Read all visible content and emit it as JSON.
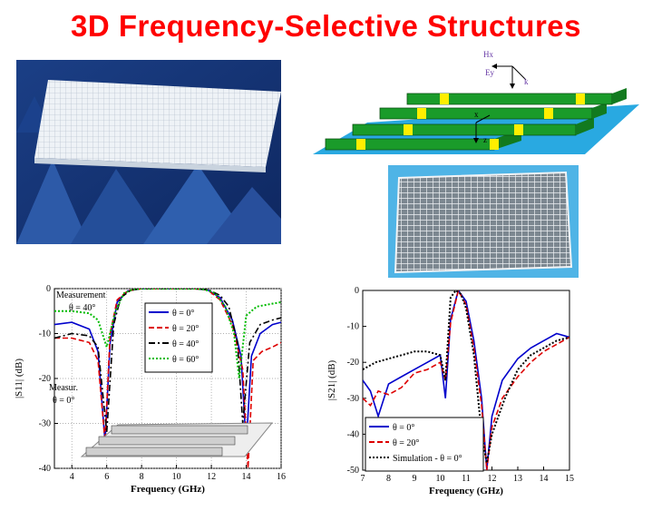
{
  "title": "3D Frequency-Selective Structures",
  "diagram": {
    "labels": {
      "h": "Hx",
      "e": "Ey",
      "k": "k",
      "x": "x",
      "z": "z"
    }
  },
  "chart_data": [
    {
      "type": "line",
      "xlabel": "Frequency (GHz)",
      "ylabel": "|S11| (dB)",
      "xlim": [
        3,
        16
      ],
      "ylim": [
        -40,
        0
      ],
      "xticks": [
        "4",
        "6",
        "8",
        "10",
        "12",
        "14",
        "16"
      ],
      "yticks": [
        "0",
        "-10",
        "-20",
        "-30",
        "-40"
      ],
      "grid": true,
      "legend_position": "top-center",
      "annotations": [
        "Measurement",
        "θ = 40°",
        "Measur.",
        "θ = 0°"
      ],
      "series": [
        {
          "name": "θ = 0°",
          "color": "#0000cc",
          "dash": "solid",
          "x": [
            3,
            4,
            5,
            5.5,
            5.9,
            6.2,
            6.6,
            7.2,
            8,
            9,
            10,
            11,
            11.8,
            12.5,
            13.2,
            13.7,
            14,
            14.3,
            14.8,
            15.5,
            16
          ],
          "y": [
            -8,
            -7.5,
            -9,
            -14,
            -34,
            -12,
            -3,
            -0.5,
            0,
            0,
            0,
            0,
            -0.3,
            -2,
            -7,
            -15,
            -35,
            -15,
            -10,
            -8,
            -7.5
          ]
        },
        {
          "name": "θ = 20°",
          "color": "#dd0000",
          "dash": "dashed",
          "x": [
            3,
            4,
            5,
            5.5,
            5.9,
            6.2,
            6.6,
            7.2,
            8,
            9,
            10,
            11,
            11.8,
            12.5,
            13.2,
            13.8,
            14.1,
            14.4,
            14.9,
            15.5,
            16
          ],
          "y": [
            -11,
            -11,
            -12,
            -16,
            -34,
            -10,
            -2.5,
            -0.5,
            0,
            0,
            0,
            0,
            -0.3,
            -2.5,
            -8,
            -18,
            -40,
            -16,
            -14,
            -13,
            -12
          ]
        },
        {
          "name": "θ = 40°",
          "color": "#000000",
          "dash": "dashdot",
          "x": [
            3,
            4,
            5,
            5.5,
            6,
            6.4,
            6.8,
            7.4,
            8,
            9,
            10,
            11,
            11.8,
            12.5,
            13,
            13.5,
            13.8,
            14.2,
            14.8,
            15.5,
            16
          ],
          "y": [
            -11,
            -10,
            -10.5,
            -13,
            -32,
            -8,
            -2,
            -0.3,
            0,
            0,
            0,
            0,
            -0.2,
            -1.5,
            -4,
            -12,
            -30,
            -12,
            -8,
            -7,
            -6.5
          ]
        },
        {
          "name": "θ = 60°",
          "color": "#00bb00",
          "dash": "dotted",
          "x": [
            3,
            4,
            5,
            5.5,
            6,
            6.5,
            7,
            7.5,
            8,
            9,
            10,
            11,
            11.6,
            12.2,
            12.8,
            13.3,
            13.6,
            14,
            14.6,
            15.3,
            16
          ],
          "y": [
            -5,
            -5,
            -5.5,
            -7,
            -13,
            -5,
            -1,
            -0.2,
            0,
            0,
            0,
            0,
            -0.2,
            -1,
            -4,
            -10,
            -20,
            -6,
            -4,
            -3.5,
            -3
          ]
        }
      ]
    },
    {
      "type": "line",
      "xlabel": "Frequency (GHz)",
      "ylabel": "|S21| (dB)",
      "xlim": [
        7,
        15
      ],
      "ylim": [
        -50,
        0
      ],
      "xticks": [
        "7",
        "8",
        "9",
        "10",
        "11",
        "12",
        "13",
        "14",
        "15"
      ],
      "yticks": [
        "0",
        "-10",
        "-20",
        "-30",
        "-40",
        "-50"
      ],
      "grid": false,
      "legend_position": "bottom-left",
      "series": [
        {
          "name": "θ = 0°",
          "color": "#0000cc",
          "dash": "solid",
          "x": [
            7,
            7.3,
            7.6,
            8,
            8.5,
            9,
            9.5,
            10,
            10.2,
            10.4,
            10.7,
            11,
            11.3,
            11.6,
            11.8,
            12,
            12.4,
            13,
            13.5,
            14,
            14.5,
            15
          ],
          "y": [
            -25,
            -28,
            -35,
            -26,
            -24,
            -22,
            -20,
            -18,
            -30,
            -8,
            0,
            -3,
            -14,
            -30,
            -50,
            -35,
            -25,
            -19,
            -16,
            -14,
            -12,
            -13
          ]
        },
        {
          "name": "θ = 20°",
          "color": "#dd0000",
          "dash": "dashed",
          "x": [
            7,
            7.3,
            7.6,
            8,
            8.5,
            9,
            9.5,
            10,
            10.2,
            10.4,
            10.7,
            11,
            11.3,
            11.6,
            11.8,
            12,
            12.4,
            13,
            13.5,
            14,
            14.5,
            15
          ],
          "y": [
            -30,
            -32,
            -28,
            -29,
            -27,
            -23,
            -22,
            -20,
            -25,
            -9,
            0,
            -4,
            -16,
            -32,
            -50,
            -38,
            -30,
            -24,
            -20,
            -17,
            -15,
            -13
          ]
        },
        {
          "name": "Simulation - θ = 0°",
          "color": "#000000",
          "dash": "dotted",
          "x": [
            7,
            7.5,
            8,
            8.5,
            9,
            9.5,
            10,
            10.2,
            10.4,
            10.6,
            10.8,
            11,
            11.3,
            11.6,
            11.8,
            12,
            12.5,
            13,
            13.5,
            14,
            14.5,
            15
          ],
          "y": [
            -22,
            -20,
            -19,
            -18,
            -17,
            -17,
            -18,
            -25,
            -2,
            0,
            -1,
            -5,
            -18,
            -40,
            -48,
            -40,
            -30,
            -22,
            -18,
            -16,
            -14,
            -13
          ]
        }
      ]
    }
  ]
}
